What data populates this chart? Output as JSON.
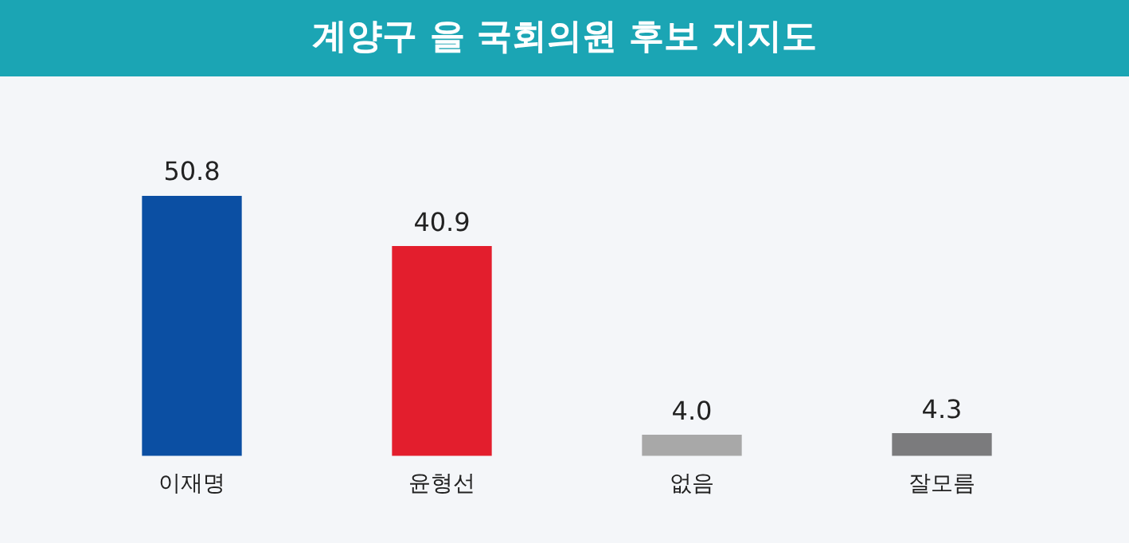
{
  "chart_data": {
    "type": "bar",
    "title": "계양구 을 국회의원 후보 지지도",
    "categories": [
      "이재명",
      "윤형선",
      "없음",
      "잘모름"
    ],
    "values": [
      50.8,
      40.9,
      4.0,
      4.3
    ],
    "colors": [
      "#0b4fa3",
      "#e31e2d",
      "#a8a8a8",
      "#7b7b7d"
    ],
    "value_labels": [
      "50.8",
      "40.9",
      "4.0",
      "4.3"
    ],
    "grid": false,
    "legend": false
  }
}
